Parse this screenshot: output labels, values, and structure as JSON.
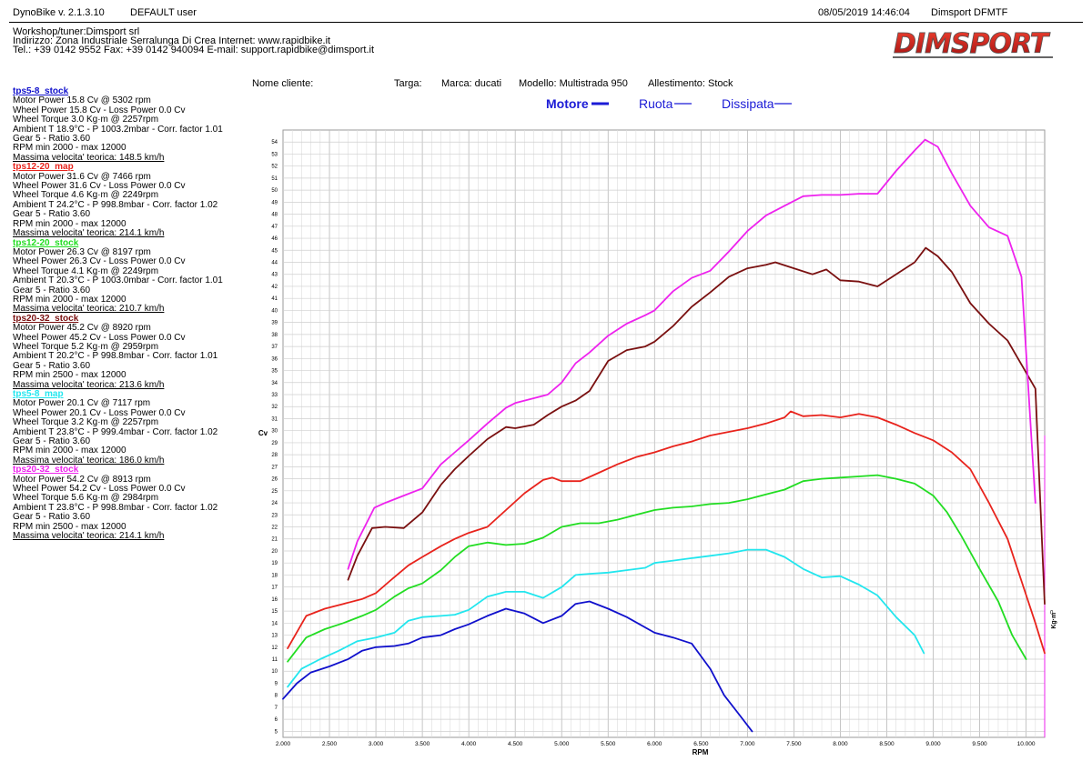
{
  "header": {
    "software": "DynoBike v. 2.1.3.10",
    "user": "DEFAULT user",
    "datetime": "08/05/2019 14:46:04",
    "device": "Dimsport DFMTF"
  },
  "workshop": {
    "line1": "Workshop/tuner:Dimsport srl",
    "line2": "Indirizzo: Zona Industriale Serralunga Di Crea Internet: www.rapidbike.it",
    "line3": "Tel.: +39 0142 9552 Fax: +39 0142 940094 E-mail: support.rapidbike@dimsport.it"
  },
  "logo": {
    "text": "DIMSPORT",
    "color": "#d8231f"
  },
  "customer": {
    "nome_cliente": "Nome cliente:",
    "targa": "Targa:",
    "marca": "Marca: ducati",
    "modello": "Modello: Multistrada 950",
    "allestimento": "Allestimento: Stock"
  },
  "legend": {
    "motore": "Motore",
    "ruota": "Ruota",
    "dissipata": "Dissipata",
    "color": "#1b1bd6"
  },
  "runs": [
    {
      "name": "tps5-8_stock",
      "color": "#1010cc",
      "lines": [
        "Motor Power 15.8 Cv  @ 5302 rpm",
        "Wheel Power 15.8 Cv  - Loss Power 0.0 Cv",
        "Wheel Torque 3.0 Kg·m  @ 2257rpm",
        "Ambient T 18.9°C - P 1003.2mbar - Corr. factor 1.01",
        "Gear 5 - Ratio 3.60",
        "RPM min 2000 - max 12000"
      ],
      "speed": "Massima velocita' teorica: 148.5 km/h"
    },
    {
      "name": "tps12-20_map",
      "color": "#e8231c",
      "lines": [
        "Motor Power 31.6 Cv  @ 7466 rpm",
        "Wheel Power 31.6 Cv  - Loss Power 0.0 Cv",
        "Wheel Torque 4.6 Kg·m  @ 2249rpm",
        "Ambient T 24.2°C - P 998.8mbar - Corr. factor 1.02",
        "Gear 5 - Ratio 3.60",
        "RPM min 2000 - max 12000"
      ],
      "speed": "Massima velocita' teorica: 214.1 km/h"
    },
    {
      "name": "tps12-20_stock",
      "color": "#22dd22",
      "lines": [
        "Motor Power 26.3 Cv  @ 8197 rpm",
        "Wheel Power 26.3 Cv  - Loss Power 0.0 Cv",
        "Wheel Torque 4.1 Kg·m  @ 2249rpm",
        "Ambient T 20.3°C - P 1003.0mbar - Corr. factor 1.01",
        "Gear 5 - Ratio 3.60",
        "RPM min 2000 - max 12000"
      ],
      "speed": "Massima velocita' teorica: 210.7 km/h"
    },
    {
      "name": "tps20-32_stock",
      "color": "#7a1010",
      "lines": [
        "Motor Power 45.2 Cv  @ 8920 rpm",
        "Wheel Power 45.2 Cv  - Loss Power 0.0 Cv",
        "Wheel Torque 5.2 Kg·m  @ 2959rpm",
        "Ambient T 20.2°C - P 998.8mbar - Corr. factor 1.01",
        "Gear 5 - Ratio 3.60",
        "RPM min 2500 - max 12000"
      ],
      "speed": "Massima velocita' teorica: 213.6 km/h"
    },
    {
      "name": "tps5-8_map",
      "color": "#22e6ee",
      "lines": [
        "Motor Power 20.1 Cv  @ 7117 rpm",
        "Wheel Power 20.1 Cv  - Loss Power 0.0 Cv",
        "Wheel Torque 3.2 Kg·m  @ 2257rpm",
        "Ambient T 23.8°C - P 999.4mbar - Corr. factor 1.02",
        "Gear 5 - Ratio 3.60",
        "RPM min 2000 - max 12000"
      ],
      "speed": "Massima velocita' teorica: 186.0 km/h"
    },
    {
      "name": "tps20-32_stock",
      "color": "#ee22ee",
      "lines": [
        "Motor Power 54.2 Cv  @ 8913 rpm",
        "Wheel Power 54.2 Cv  - Loss Power 0.0 Cv",
        "Wheel Torque 5.6 Kg·m  @ 2984rpm",
        "Ambient T 23.8°C - P 998.8mbar - Corr. factor 1.02",
        "Gear 5 - Ratio 3.60",
        "RPM min 2500 - max 12000"
      ],
      "speed": "Massima velocita' teorica: 214.1 km/h"
    }
  ],
  "chart_data": {
    "type": "line",
    "xlabel": "RPM",
    "ylabel": "Cv",
    "y2label": "Kg·m",
    "y2_tick": "0",
    "xlim": [
      2000,
      10200
    ],
    "ylim": [
      4.5,
      55
    ],
    "x_ticks": [
      2000,
      2500,
      3000,
      3500,
      4000,
      4500,
      5000,
      5500,
      6000,
      6500,
      7000,
      7500,
      8000,
      8500,
      9000,
      9500,
      10000
    ],
    "x_tick_labels": [
      "2.000",
      "2.500",
      "3.000",
      "3.500",
      "4.000",
      "4.500",
      "5.000",
      "5.500",
      "6.000",
      "6.500",
      "7.000",
      "7.500",
      "8.000",
      "8.500",
      "9.000",
      "9.500",
      "10.000"
    ],
    "y_ticks": [
      5,
      6,
      7,
      8,
      9,
      10,
      11,
      12,
      13,
      14,
      15,
      16,
      17,
      18,
      19,
      20,
      21,
      22,
      23,
      24,
      25,
      26,
      27,
      28,
      29,
      30,
      31,
      32,
      33,
      34,
      35,
      36,
      37,
      38,
      39,
      40,
      41,
      42,
      43,
      44,
      45,
      46,
      47,
      48,
      49,
      50,
      51,
      52,
      53,
      54
    ],
    "grid": true,
    "series": [
      {
        "name": "tps5-8_stock",
        "color": "#1010cc",
        "x": [
          2000,
          2150,
          2300,
          2500,
          2700,
          2850,
          3000,
          3200,
          3350,
          3500,
          3700,
          3850,
          4000,
          4200,
          4400,
          4600,
          4800,
          5000,
          5150,
          5300,
          5500,
          5700,
          6000,
          6200,
          6400,
          6600,
          6750,
          6900,
          7050
        ],
        "y": [
          7.7,
          9.0,
          9.9,
          10.4,
          11.0,
          11.7,
          12.0,
          12.1,
          12.3,
          12.8,
          13.0,
          13.5,
          13.9,
          14.6,
          15.2,
          14.8,
          14.0,
          14.6,
          15.6,
          15.8,
          15.2,
          14.5,
          13.2,
          12.8,
          12.3,
          10.2,
          8.0,
          6.5,
          5.0
        ]
      },
      {
        "name": "tps5-8_map",
        "color": "#22e6ee",
        "x": [
          2050,
          2200,
          2400,
          2600,
          2800,
          3000,
          3200,
          3350,
          3500,
          3700,
          3850,
          4000,
          4200,
          4400,
          4600,
          4800,
          5000,
          5150,
          5300,
          5500,
          5700,
          5900,
          6000,
          6200,
          6400,
          6600,
          6800,
          7000,
          7200,
          7400,
          7600,
          7800,
          8000,
          8200,
          8400,
          8600,
          8800,
          8900
        ],
        "y": [
          8.7,
          10.2,
          11.0,
          11.7,
          12.5,
          12.8,
          13.2,
          14.2,
          14.5,
          14.6,
          14.7,
          15.1,
          16.2,
          16.6,
          16.6,
          16.1,
          17.0,
          18.0,
          18.1,
          18.2,
          18.4,
          18.6,
          19.0,
          19.2,
          19.4,
          19.6,
          19.8,
          20.1,
          20.1,
          19.5,
          18.5,
          17.8,
          17.9,
          17.2,
          16.3,
          14.5,
          13.0,
          11.5
        ]
      },
      {
        "name": "tps12-20_stock",
        "color": "#22dd22",
        "x": [
          2050,
          2250,
          2450,
          2650,
          2850,
          3000,
          3200,
          3350,
          3500,
          3700,
          3850,
          4000,
          4200,
          4400,
          4600,
          4800,
          5000,
          5200,
          5400,
          5600,
          5800,
          6000,
          6200,
          6400,
          6600,
          6800,
          7000,
          7200,
          7400,
          7600,
          7800,
          8000,
          8200,
          8400,
          8600,
          8800,
          9000,
          9150,
          9300,
          9500,
          9700,
          9850,
          10000
        ],
        "y": [
          10.8,
          12.8,
          13.5,
          14.0,
          14.6,
          15.1,
          16.2,
          16.9,
          17.3,
          18.4,
          19.5,
          20.4,
          20.7,
          20.5,
          20.6,
          21.1,
          22.0,
          22.3,
          22.3,
          22.6,
          23.0,
          23.4,
          23.6,
          23.7,
          23.9,
          24.0,
          24.3,
          24.7,
          25.1,
          25.8,
          26.0,
          26.1,
          26.2,
          26.3,
          26.0,
          25.6,
          24.6,
          23.2,
          21.3,
          18.5,
          15.8,
          13.0,
          11.0
        ]
      },
      {
        "name": "tps12-20_map",
        "color": "#e8231c",
        "x": [
          2050,
          2250,
          2450,
          2650,
          2850,
          3000,
          3150,
          3350,
          3500,
          3700,
          3850,
          4000,
          4200,
          4400,
          4600,
          4800,
          4900,
          5000,
          5200,
          5400,
          5600,
          5800,
          6000,
          6200,
          6400,
          6600,
          6800,
          7000,
          7200,
          7400,
          7466,
          7600,
          7800,
          8000,
          8200,
          8400,
          8600,
          8800,
          9000,
          9200,
          9400,
          9600,
          9800,
          9950,
          10100,
          10200
        ],
        "y": [
          11.9,
          14.6,
          15.2,
          15.6,
          16.0,
          16.5,
          17.5,
          18.8,
          19.5,
          20.4,
          21.0,
          21.5,
          22.0,
          23.4,
          24.8,
          25.9,
          26.1,
          25.8,
          25.8,
          26.5,
          27.2,
          27.8,
          28.2,
          28.7,
          29.1,
          29.6,
          29.9,
          30.2,
          30.6,
          31.1,
          31.6,
          31.2,
          31.3,
          31.1,
          31.4,
          31.1,
          30.5,
          29.8,
          29.2,
          28.2,
          26.8,
          24.0,
          21.0,
          17.5,
          14.0,
          11.5
        ]
      },
      {
        "name": "tps20-32_stock",
        "color": "#7a1010",
        "x": [
          2700,
          2800,
          2959,
          3100,
          3300,
          3500,
          3700,
          3850,
          4000,
          4200,
          4400,
          4500,
          4700,
          4850,
          5000,
          5150,
          5300,
          5500,
          5700,
          5900,
          6000,
          6200,
          6400,
          6600,
          6800,
          7000,
          7200,
          7300,
          7500,
          7700,
          7850,
          8000,
          8200,
          8400,
          8600,
          8800,
          8920,
          9050,
          9200,
          9400,
          9600,
          9800,
          9950,
          10100,
          10200
        ],
        "y": [
          17.6,
          19.6,
          21.9,
          22.0,
          21.9,
          23.2,
          25.5,
          26.8,
          27.9,
          29.3,
          30.3,
          30.2,
          30.5,
          31.3,
          32.0,
          32.5,
          33.3,
          35.8,
          36.7,
          37.0,
          37.4,
          38.7,
          40.3,
          41.5,
          42.8,
          43.5,
          43.8,
          44.0,
          43.5,
          43.0,
          43.4,
          42.5,
          42.4,
          42.0,
          43.0,
          44.0,
          45.2,
          44.5,
          43.2,
          40.6,
          38.9,
          37.5,
          35.5,
          33.5,
          15.6
        ]
      },
      {
        "name": "tps20-32_stock",
        "color": "#ee22ee",
        "x": [
          2700,
          2800,
          2984,
          3100,
          3300,
          3500,
          3700,
          3850,
          4000,
          4200,
          4400,
          4500,
          4700,
          4850,
          5000,
          5150,
          5300,
          5500,
          5700,
          5900,
          6000,
          6200,
          6400,
          6600,
          6800,
          7000,
          7200,
          7400,
          7600,
          7800,
          8000,
          8200,
          8400,
          8600,
          8800,
          8913,
          9050,
          9200,
          9400,
          9600,
          9800,
          9950,
          10100
        ],
        "y": [
          18.5,
          20.8,
          23.6,
          24.0,
          24.6,
          25.2,
          27.2,
          28.2,
          29.2,
          30.6,
          31.9,
          32.3,
          32.7,
          33.0,
          34.0,
          35.6,
          36.5,
          37.9,
          38.9,
          39.6,
          40.0,
          41.6,
          42.7,
          43.3,
          44.9,
          46.6,
          47.9,
          48.7,
          49.5,
          49.6,
          49.6,
          49.7,
          49.7,
          51.6,
          53.3,
          54.2,
          53.6,
          51.4,
          48.7,
          46.9,
          46.2,
          42.8,
          24.0
        ]
      }
    ]
  }
}
